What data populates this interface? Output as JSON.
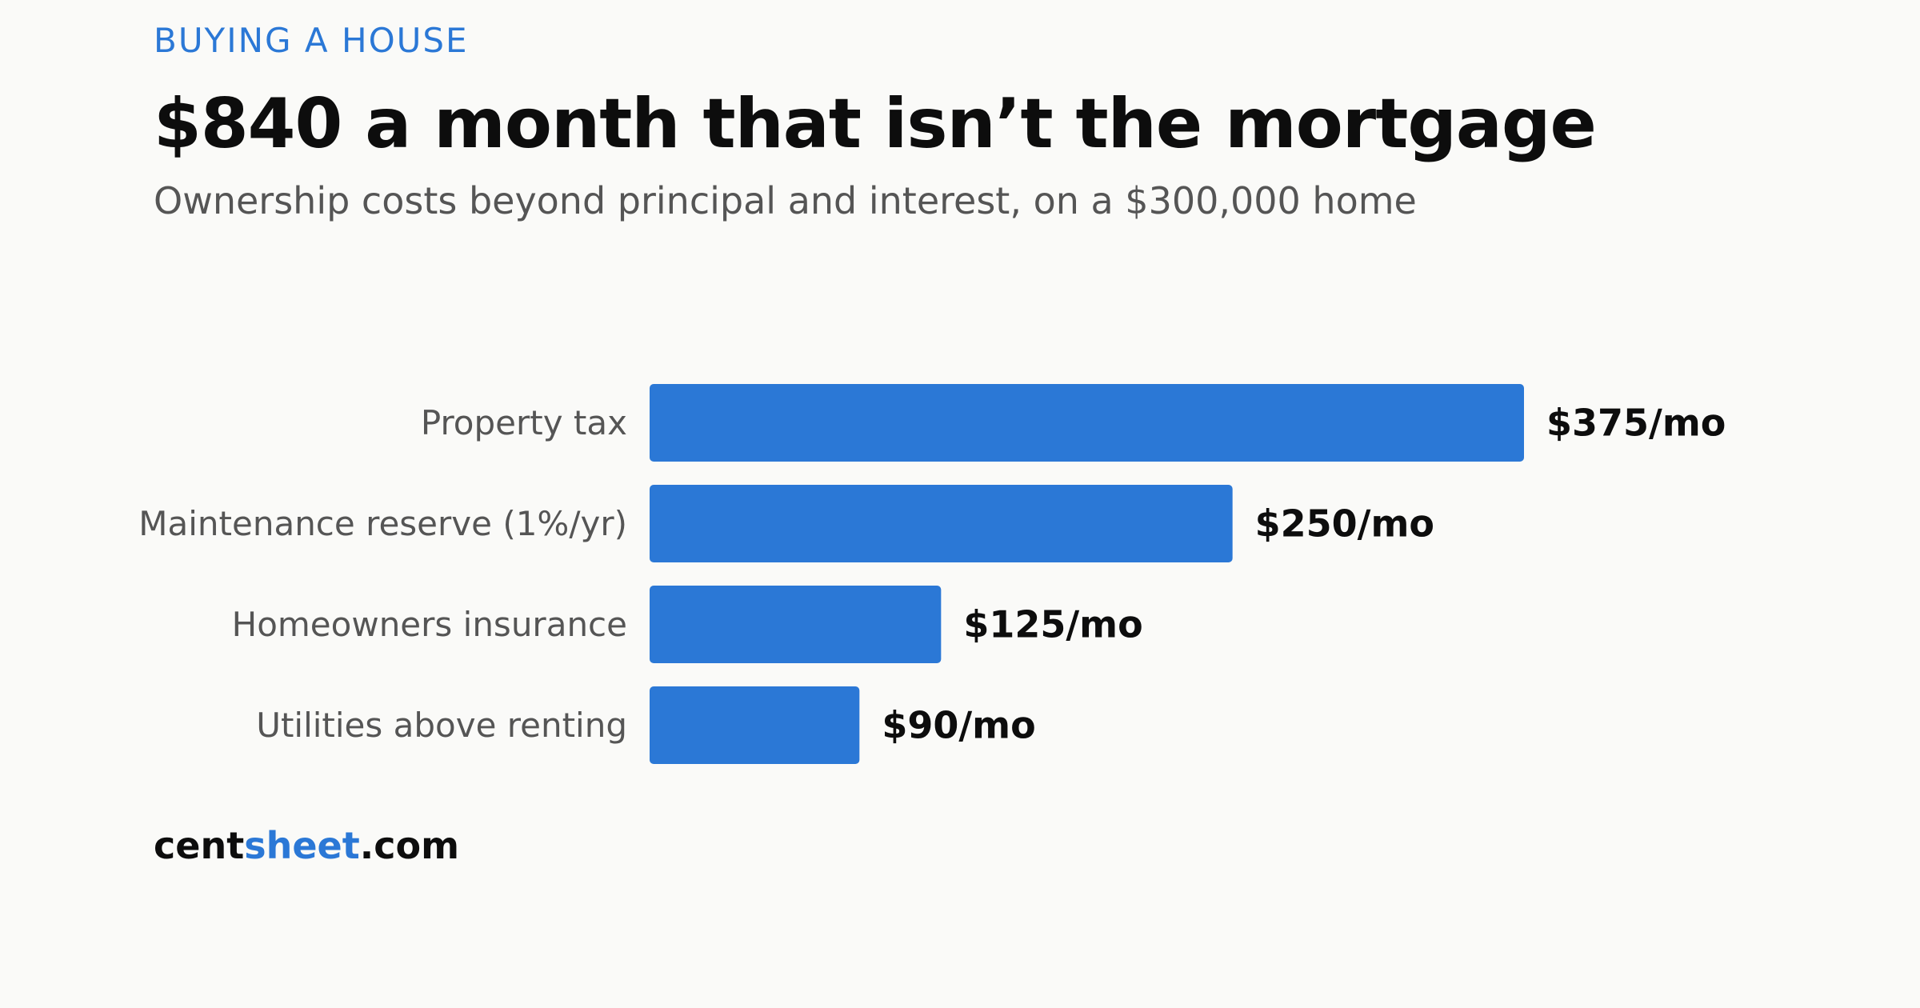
{
  "header": {
    "kicker": "BUYING A HOUSE",
    "title": "$840 a month that isn’t the mortgage",
    "subtitle": "Ownership costs beyond principal and interest, on a $300,000 home"
  },
  "footer": {
    "brand_part1": "cent",
    "brand_part2": "sheet",
    "brand_part3": ".com"
  },
  "colors": {
    "bar": "#2b78d6",
    "accent": "#2b78d6",
    "background": "#fafaf8"
  },
  "chart_data": {
    "type": "bar",
    "orientation": "horizontal",
    "categories": [
      "Property tax",
      "Maintenance reserve (1%/yr)",
      "Homeowners insurance",
      "Utilities above renting"
    ],
    "values": [
      375,
      250,
      125,
      90
    ],
    "value_labels": [
      "$375/mo",
      "$250/mo",
      "$125/mo",
      "$90/mo"
    ],
    "title": "$840 a month that isn’t the mortgage",
    "subtitle": "Ownership costs beyond principal and interest, on a $300,000 home",
    "xlabel": "",
    "ylabel": "",
    "grid": false,
    "legend": "none"
  }
}
